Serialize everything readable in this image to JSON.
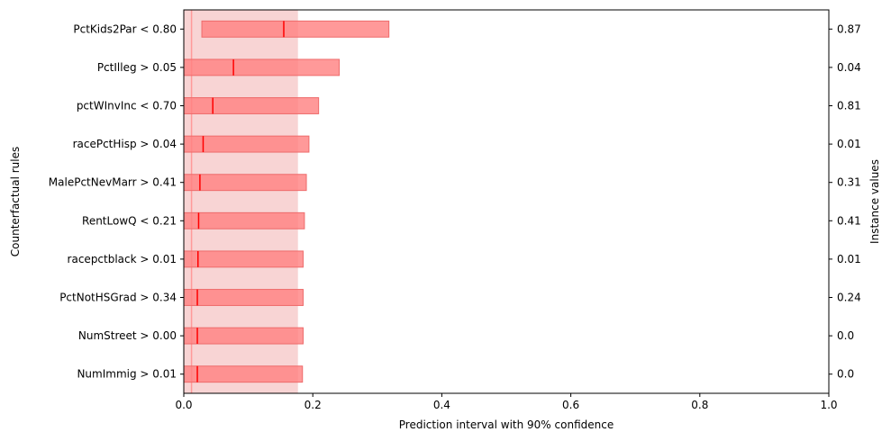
{
  "chart_data": {
    "type": "bar",
    "xlabel": "Prediction interval with 90% confidence",
    "ylabel": "Counterfactual rules",
    "ylabel_right": "Instance values",
    "xlim": [
      0,
      1
    ],
    "xticks": [
      "0.0",
      "0.2",
      "0.4",
      "0.6",
      "0.8",
      "1.0"
    ],
    "baseline_interval": {
      "low": 0.0,
      "high": 0.177,
      "point": 0.012
    },
    "colors": {
      "band": "#f8d4d4",
      "bar": "#ff8080",
      "bar_edge": "#ee6b6b",
      "point": "#ff0000",
      "baseline": "#ff9999"
    },
    "rules": [
      {
        "label": "PctKids2Par < 0.80",
        "low": 0.028,
        "high": 0.318,
        "point": 0.155,
        "instance": "0.87"
      },
      {
        "label": "PctIlleg > 0.05",
        "low": 0.0,
        "high": 0.241,
        "point": 0.077,
        "instance": "0.04"
      },
      {
        "label": "pctWInvInc < 0.70",
        "low": 0.0,
        "high": 0.209,
        "point": 0.045,
        "instance": "0.81"
      },
      {
        "label": "racePctHisp > 0.04",
        "low": 0.0,
        "high": 0.194,
        "point": 0.03,
        "instance": "0.01"
      },
      {
        "label": "MalePctNevMarr > 0.41",
        "low": 0.0,
        "high": 0.19,
        "point": 0.025,
        "instance": "0.31"
      },
      {
        "label": "RentLowQ < 0.21",
        "low": 0.0,
        "high": 0.187,
        "point": 0.023,
        "instance": "0.41"
      },
      {
        "label": "racepctblack > 0.01",
        "low": 0.0,
        "high": 0.185,
        "point": 0.022,
        "instance": "0.01"
      },
      {
        "label": "PctNotHSGrad > 0.34",
        "low": 0.0,
        "high": 0.185,
        "point": 0.021,
        "instance": "0.24"
      },
      {
        "label": "NumStreet > 0.00",
        "low": 0.0,
        "high": 0.185,
        "point": 0.021,
        "instance": "0.0"
      },
      {
        "label": "NumImmig > 0.01",
        "low": 0.0,
        "high": 0.184,
        "point": 0.021,
        "instance": "0.0"
      }
    ]
  }
}
